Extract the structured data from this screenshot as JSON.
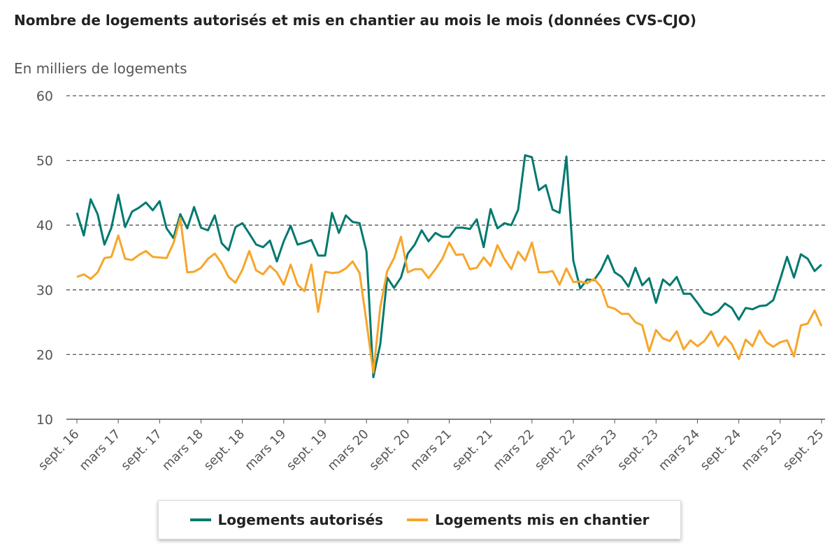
{
  "chart_data": {
    "type": "line",
    "title": "Nombre de logements autorisés et mis en chantier au mois le mois (données CVS-CJO)",
    "subtitle": "En milliers de logements",
    "xlabel": "",
    "ylabel": "En milliers de logements",
    "ylim": [
      10,
      60
    ],
    "yticks": [
      "10",
      "20",
      "30",
      "40",
      "50",
      "60"
    ],
    "grid": true,
    "legend_position": "bottom",
    "x_start": "sept. 16",
    "x_end": "sept. 25",
    "tick_every_months": 6,
    "x_tick_labels": [
      "sept. 16",
      "mars 17",
      "sept. 17",
      "mars 18",
      "sept. 18",
      "mars 19",
      "sept. 19",
      "mars 20",
      "sept. 20",
      "mars 21",
      "sept. 21",
      "mars 22",
      "sept. 22",
      "mars 23",
      "sept. 23",
      "mars 24",
      "sept. 24",
      "mars 25",
      "sept. 25"
    ],
    "series": [
      {
        "name": "Logements autorisés",
        "color": "#00796f",
        "values": [
          41.9,
          38.4,
          44.0,
          41.7,
          37.0,
          39.6,
          44.7,
          39.7,
          42.1,
          42.7,
          43.5,
          42.3,
          43.7,
          39.5,
          38.0,
          41.7,
          39.5,
          42.8,
          39.6,
          39.2,
          41.5,
          37.2,
          36.1,
          39.7,
          40.3,
          38.7,
          37.0,
          36.6,
          37.6,
          34.4,
          37.5,
          39.9,
          37.0,
          37.3,
          37.7,
          35.3,
          35.3,
          41.9,
          38.8,
          41.5,
          40.5,
          40.3,
          35.9,
          16.5,
          21.6,
          31.9,
          30.3,
          31.9,
          35.6,
          37.0,
          39.2,
          37.5,
          38.8,
          38.2,
          38.2,
          39.6,
          39.6,
          39.4,
          40.9,
          36.6,
          42.5,
          39.5,
          40.3,
          40.0,
          42.4,
          50.8,
          50.5,
          45.4,
          46.2,
          42.4,
          41.9,
          50.6,
          34.5,
          30.2,
          31.6,
          31.5,
          33.0,
          35.3,
          32.7,
          32.0,
          30.5,
          33.4,
          30.7,
          31.8,
          28.0,
          31.6,
          30.7,
          32.0,
          29.4,
          29.4,
          28.0,
          26.5,
          26.1,
          26.7,
          27.9,
          27.2,
          25.4,
          27.2,
          27.0,
          27.5,
          27.6,
          28.4,
          31.6,
          35.1,
          31.9,
          35.5,
          34.8,
          32.9,
          33.9
        ]
      },
      {
        "name": "Logements mis en chantier",
        "color": "#f7a529",
        "values": [
          32.0,
          32.4,
          31.7,
          32.7,
          34.9,
          35.1,
          38.4,
          34.8,
          34.6,
          35.4,
          36.0,
          35.1,
          35.0,
          34.9,
          37.2,
          41.1,
          32.7,
          32.8,
          33.4,
          34.8,
          35.6,
          34.1,
          32.0,
          31.1,
          33.1,
          36.0,
          33.0,
          32.4,
          33.7,
          32.7,
          30.8,
          33.9,
          30.8,
          29.8,
          33.9,
          26.6,
          32.8,
          32.6,
          32.7,
          33.3,
          34.4,
          32.6,
          25.0,
          17.2,
          27.3,
          32.9,
          34.9,
          38.2,
          32.7,
          33.2,
          33.2,
          31.8,
          33.2,
          34.8,
          37.3,
          35.4,
          35.5,
          33.2,
          33.4,
          35.0,
          33.7,
          36.9,
          34.8,
          33.2,
          35.9,
          34.5,
          37.3,
          32.7,
          32.7,
          32.9,
          30.8,
          33.3,
          31.2,
          31.3,
          31.0,
          31.7,
          30.5,
          27.4,
          27.1,
          26.3,
          26.3,
          25.0,
          24.5,
          20.5,
          23.8,
          22.5,
          22.1,
          23.6,
          20.8,
          22.2,
          21.3,
          22.1,
          23.6,
          21.3,
          22.8,
          21.6,
          19.3,
          22.3,
          21.3,
          23.7,
          21.9,
          21.2,
          21.9,
          22.2,
          19.7,
          24.5,
          24.8,
          26.8,
          24.4
        ]
      }
    ]
  }
}
